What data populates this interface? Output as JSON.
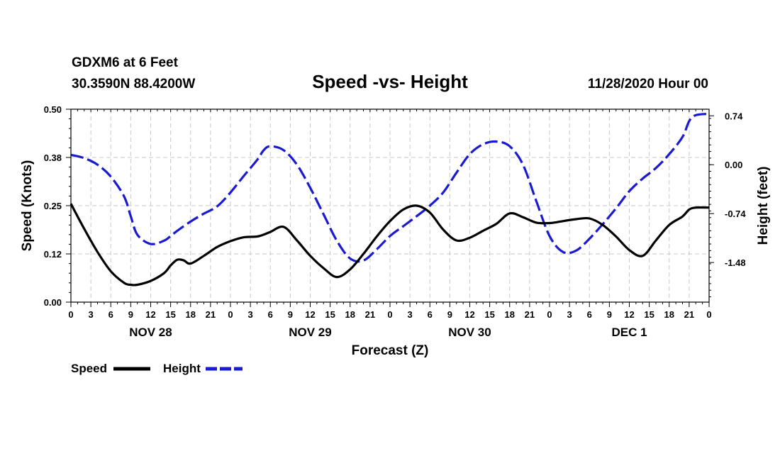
{
  "header": {
    "station": "GDXM6 at 6 Feet",
    "coords": "30.3590N 88.4200W",
    "title": "Speed -vs- Height",
    "datetime": "11/28/2020 Hour 00"
  },
  "chart_data": {
    "type": "line",
    "title": "Speed -vs- Height",
    "xlabel": "Forecast (Z)",
    "ylabel": "Speed (Knots)",
    "y2label": "Height (feet)",
    "x_unit": "hours from 11/28/2020 00Z",
    "xlim": [
      0,
      96
    ],
    "ylim": [
      0,
      0.5
    ],
    "y2lim": [
      -2.08,
      0.84
    ],
    "x_tick_values": [
      0,
      3,
      6,
      9,
      12,
      15,
      18,
      21,
      24,
      27,
      30,
      33,
      36,
      39,
      42,
      45,
      48,
      51,
      54,
      57,
      60,
      63,
      66,
      69,
      72,
      75,
      78,
      81,
      84,
      87,
      90,
      93,
      96
    ],
    "x_tick_labels": [
      "0",
      "3",
      "6",
      "9",
      "12",
      "15",
      "18",
      "21",
      "0",
      "3",
      "6",
      "9",
      "12",
      "15",
      "18",
      "21",
      "0",
      "3",
      "6",
      "9",
      "12",
      "15",
      "18",
      "21",
      "0",
      "3",
      "6",
      "9",
      "12",
      "15",
      "18",
      "21",
      "0"
    ],
    "day_labels": [
      {
        "x": 12,
        "label": "NOV 28"
      },
      {
        "x": 36,
        "label": "NOV 29"
      },
      {
        "x": 60,
        "label": "NOV 30"
      },
      {
        "x": 84,
        "label": "DEC 1"
      }
    ],
    "y_ticks": [
      0,
      0.125,
      0.25,
      0.375,
      0.5
    ],
    "y_tick_labels": [
      "0.00",
      "0.12",
      "0.25",
      "0.38",
      "0.50"
    ],
    "y2_ticks": [
      0.74,
      0,
      -0.74,
      -1.48
    ],
    "y2_tick_labels": [
      "0.74",
      "0.00",
      "-0.74",
      "-1.48"
    ],
    "grid": true,
    "legend_position": "bottom-left",
    "series": [
      {
        "name": "Speed",
        "axis": "left",
        "color": "#000000",
        "style": "solid",
        "x": [
          0,
          2,
          4,
          6,
          8,
          9,
          10,
          12,
          14,
          15,
          16,
          17,
          18,
          20,
          22,
          24,
          26,
          28,
          29,
          30,
          32,
          34,
          36,
          38,
          40,
          42,
          44,
          46,
          48,
          50,
          52,
          54,
          56,
          58,
          60,
          62,
          64,
          66,
          68,
          70,
          72,
          73,
          74,
          76,
          78,
          80,
          82,
          84,
          86,
          88,
          90,
          92,
          93,
          94,
          96
        ],
        "values": [
          0.255,
          0.19,
          0.13,
          0.08,
          0.05,
          0.045,
          0.045,
          0.055,
          0.075,
          0.095,
          0.11,
          0.108,
          0.1,
          0.12,
          0.143,
          0.158,
          0.168,
          0.17,
          0.175,
          0.182,
          0.195,
          0.16,
          0.12,
          0.088,
          0.065,
          0.085,
          0.125,
          0.17,
          0.21,
          0.24,
          0.25,
          0.232,
          0.188,
          0.16,
          0.167,
          0.185,
          0.203,
          0.23,
          0.22,
          0.206,
          0.205,
          0.207,
          0.21,
          0.215,
          0.217,
          0.2,
          0.17,
          0.135,
          0.12,
          0.16,
          0.2,
          0.222,
          0.24,
          0.245,
          0.245
        ]
      },
      {
        "name": "Height",
        "axis": "right",
        "color": "#1a1ad0",
        "style": "dashed",
        "x": [
          0,
          2,
          4,
          6,
          8,
          9,
          10,
          12,
          14,
          15,
          16,
          18,
          20,
          22,
          24,
          26,
          28,
          29,
          30,
          32,
          34,
          36,
          38,
          40,
          42,
          44,
          46,
          48,
          50,
          52,
          54,
          56,
          58,
          60,
          62,
          64,
          66,
          68,
          70,
          72,
          74,
          76,
          78,
          80,
          82,
          84,
          86,
          88,
          90,
          92,
          93,
          94,
          96
        ],
        "values": [
          0.15,
          0.1,
          0.0,
          -0.18,
          -0.48,
          -0.78,
          -1.06,
          -1.2,
          -1.15,
          -1.08,
          -1.0,
          -0.86,
          -0.74,
          -0.63,
          -0.42,
          -0.17,
          0.07,
          0.22,
          0.28,
          0.22,
          0.0,
          -0.35,
          -0.75,
          -1.15,
          -1.42,
          -1.45,
          -1.28,
          -1.08,
          -0.93,
          -0.78,
          -0.62,
          -0.42,
          -0.12,
          0.16,
          0.31,
          0.35,
          0.28,
          0.0,
          -0.55,
          -1.08,
          -1.32,
          -1.3,
          -1.12,
          -0.9,
          -0.66,
          -0.4,
          -0.21,
          -0.05,
          0.16,
          0.42,
          0.66,
          0.75,
          0.77
        ]
      }
    ]
  },
  "legend": [
    {
      "label": "Speed",
      "color": "#000000",
      "dashed": false
    },
    {
      "label": "Height",
      "color": "#1a1ad0",
      "dashed": true
    }
  ]
}
